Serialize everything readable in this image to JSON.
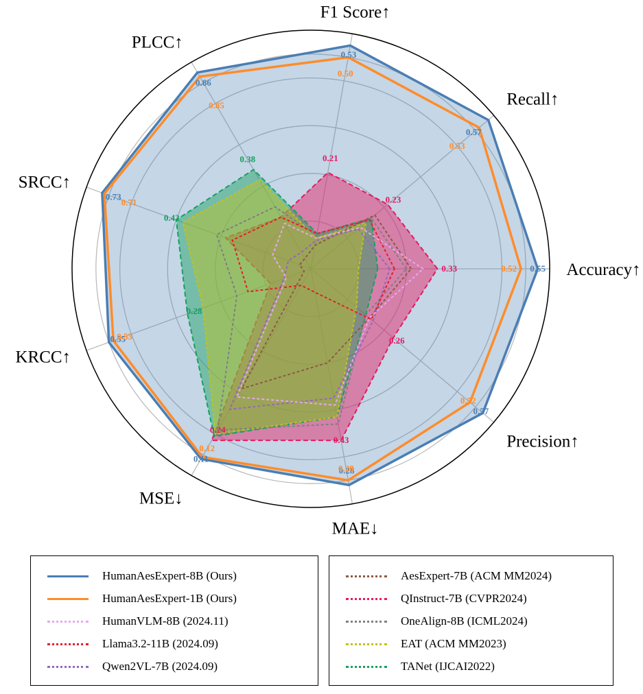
{
  "chart_data": {
    "type": "radar",
    "axes": [
      "Accuracy↑",
      "Recall↑",
      "F1 Score↑",
      "PLCC↑",
      "SRCC↑",
      "KRCC↑",
      "MSE↓",
      "MAE↓",
      "Precision↑"
    ],
    "radial_range": [
      0,
      1
    ],
    "grid": true,
    "series": [
      {
        "name": "HumanAesExpert-8B (Ours)",
        "color": "#4a7eb3",
        "style": "solid",
        "fill": true,
        "values": [
          0.95,
          0.97,
          0.95,
          0.95,
          0.93,
          0.9,
          0.92,
          0.92,
          0.94
        ]
      },
      {
        "name": "HumanAesExpert-1B (Ours)",
        "color": "#ff8c2a",
        "style": "solid",
        "fill": false,
        "values": [
          0.88,
          0.92,
          0.9,
          0.93,
          0.92,
          0.88,
          0.91,
          0.9,
          0.87
        ]
      },
      {
        "name": "HumanVLM-8B (2024.11)",
        "color": "#e7a7f0",
        "style": "dotted",
        "fill": false,
        "values": [
          0.47,
          0.27,
          0.13,
          0.22,
          0.17,
          0.11,
          0.62,
          0.58,
          0.32
        ]
      },
      {
        "name": "Llama3.2-11B (2024.09)",
        "color": "#e41e2a",
        "style": "dotted",
        "fill": false,
        "values": [
          0.35,
          0.32,
          0.15,
          0.25,
          0.35,
          0.28,
          0.08,
          0.1,
          0.33
        ]
      },
      {
        "name": "Qwen2VL-7B (2024.09)",
        "color": "#9467bd",
        "style": "dotted",
        "fill": false,
        "values": [
          0.33,
          0.26,
          0.12,
          0.08,
          0.1,
          0.12,
          0.68,
          0.55,
          0.34
        ]
      },
      {
        "name": "AesExpert-7B (ACM MM2024)",
        "color": "#8b5a44",
        "style": "dotted",
        "fill": false,
        "values": [
          0.42,
          0.35,
          0.1,
          0.05,
          0.05,
          0.03,
          0.58,
          0.4,
          0.32
        ]
      },
      {
        "name": "QInstruct-7B (CVPR2024)",
        "color": "#e6195e",
        "style": "dashed",
        "fill": true,
        "values": [
          0.53,
          0.42,
          0.41,
          0.25,
          0.38,
          0.18,
          0.83,
          0.73,
          0.45
        ]
      },
      {
        "name": "OneAlign-8B (ICML2024)",
        "color": "#7f7f7f",
        "style": "dotted",
        "fill": false,
        "values": [
          0.4,
          0.33,
          0.14,
          0.3,
          0.42,
          0.33,
          0.78,
          0.66,
          0.3
        ]
      },
      {
        "name": "EAT (ACM MM2023)",
        "color": "#c2c21c",
        "style": "dotted",
        "fill": true,
        "values": [
          0.2,
          0.3,
          0.13,
          0.43,
          0.57,
          0.48,
          0.8,
          0.63,
          0.25
        ]
      },
      {
        "name": "TANet (IJCAI2022)",
        "color": "#16a05e",
        "style": "dashed",
        "fill": true,
        "values": [
          0.28,
          0.33,
          0.15,
          0.48,
          0.6,
          0.55,
          0.81,
          0.63,
          0.3
        ]
      }
    ],
    "value_labels": [
      {
        "axis": 0,
        "pos": 0.95,
        "text": "0.55",
        "series": 0
      },
      {
        "axis": 0,
        "pos": 0.83,
        "text": "0.52",
        "series": 1
      },
      {
        "axis": 0,
        "pos": 0.58,
        "text": "0.33",
        "series": 6
      },
      {
        "axis": 1,
        "pos": 0.89,
        "text": "0.57",
        "series": 0
      },
      {
        "axis": 1,
        "pos": 0.8,
        "text": "0.53",
        "series": 1
      },
      {
        "axis": 1,
        "pos": 0.45,
        "text": "0.23",
        "series": 6
      },
      {
        "axis": 2,
        "pos": 0.91,
        "text": "0.53",
        "series": 0
      },
      {
        "axis": 2,
        "pos": 0.83,
        "text": "0.50",
        "series": 1
      },
      {
        "axis": 2,
        "pos": 0.47,
        "text": "0.21",
        "series": 6
      },
      {
        "axis": 3,
        "pos": 0.9,
        "text": "0.86",
        "series": 0
      },
      {
        "axis": 3,
        "pos": 0.79,
        "text": "0.85",
        "series": 1
      },
      {
        "axis": 3,
        "pos": 0.53,
        "text": "0.38",
        "series": 9
      },
      {
        "axis": 4,
        "pos": 0.88,
        "text": "0.73",
        "series": 0
      },
      {
        "axis": 4,
        "pos": 0.81,
        "text": "0.71",
        "series": 1
      },
      {
        "axis": 4,
        "pos": 0.62,
        "text": "0.42",
        "series": 9
      },
      {
        "axis": 5,
        "pos": 0.86,
        "text": "0.55",
        "series": 0
      },
      {
        "axis": 5,
        "pos": 0.83,
        "text": "0.53",
        "series": 1
      },
      {
        "axis": 5,
        "pos": 0.52,
        "text": "0.28",
        "series": 9
      },
      {
        "axis": 6,
        "pos": 0.92,
        "text": "0.11",
        "series": 0
      },
      {
        "axis": 6,
        "pos": 0.87,
        "text": "0.12",
        "series": 1
      },
      {
        "axis": 6,
        "pos": 0.78,
        "text": "0.24",
        "series": 6
      },
      {
        "axis": 7,
        "pos": 0.86,
        "text": "0.28",
        "series": 0
      },
      {
        "axis": 7,
        "pos": 0.85,
        "text": "0.29",
        "series": 1
      },
      {
        "axis": 7,
        "pos": 0.73,
        "text": "0.43",
        "series": 6
      },
      {
        "axis": 8,
        "pos": 0.93,
        "text": "0.57",
        "series": 0
      },
      {
        "axis": 8,
        "pos": 0.86,
        "text": "0.52",
        "series": 1
      },
      {
        "axis": 8,
        "pos": 0.47,
        "text": "0.26",
        "series": 6
      }
    ],
    "legend_left": [
      0,
      1,
      2,
      3,
      4
    ],
    "legend_right": [
      5,
      6,
      7,
      8,
      9
    ]
  }
}
